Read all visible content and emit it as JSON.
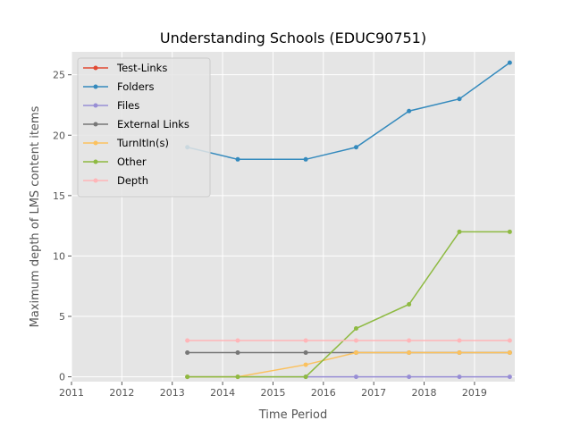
{
  "chart_data": {
    "type": "line",
    "title": "Understanding Schools (EDUC90751)",
    "xlabel": "Time Period",
    "ylabel": "Maximum depth of LMS content items",
    "xlim": [
      2011,
      2019.8
    ],
    "ylim": [
      -0.4,
      26.9
    ],
    "x_ticks": [
      2011,
      2012,
      2013,
      2014,
      2015,
      2016,
      2017,
      2018,
      2019
    ],
    "x_tick_labels": [
      "2011",
      "2012",
      "2013",
      "2014",
      "2015",
      "2016",
      "2017",
      "2018",
      "2019"
    ],
    "y_ticks": [
      0,
      5,
      10,
      15,
      20,
      25
    ],
    "y_tick_labels": [
      "0",
      "5",
      "10",
      "15",
      "20",
      "25"
    ],
    "x": [
      2013.3,
      2014.3,
      2015.65,
      2016.65,
      2017.7,
      2018.7,
      2019.7
    ],
    "grid": true,
    "background": "#e5e5e5",
    "legend_position": "top-left",
    "series": [
      {
        "name": "Test-Links",
        "color": "#e24a33",
        "values": [
          null,
          null,
          null,
          null,
          null,
          null,
          null
        ]
      },
      {
        "name": "Folders",
        "color": "#348abd",
        "values": [
          19,
          18,
          18,
          19,
          22,
          23,
          26
        ]
      },
      {
        "name": "Files",
        "color": "#988ed5",
        "values": [
          0,
          0,
          0,
          0,
          0,
          0,
          0
        ]
      },
      {
        "name": "External Links",
        "color": "#777777",
        "values": [
          2,
          2,
          2,
          2,
          2,
          2,
          2
        ]
      },
      {
        "name": "TurnItIn(s)",
        "color": "#fbc15e",
        "values": [
          0,
          0,
          1,
          2,
          2,
          2,
          2
        ]
      },
      {
        "name": "Other",
        "color": "#8eba42",
        "values": [
          0,
          0,
          0,
          4,
          6,
          12,
          12
        ]
      },
      {
        "name": "Depth",
        "color": "#ffb5b8",
        "values": [
          3,
          3,
          3,
          3,
          3,
          3,
          3
        ]
      }
    ]
  }
}
